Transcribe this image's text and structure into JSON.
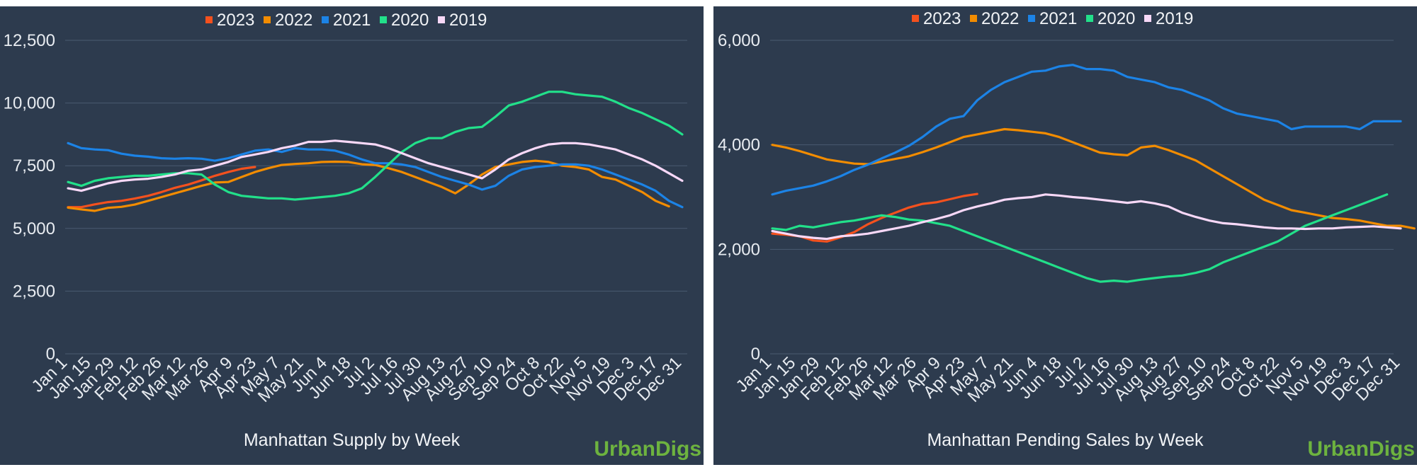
{
  "chart_data": [
    {
      "type": "line",
      "title": "Manhattan Supply by Week",
      "ylim": [
        0,
        12500
      ],
      "yticks": [
        "0",
        "2,500",
        "5,000",
        "7,500",
        "10,000",
        "12,500"
      ],
      "ytick_values": [
        0,
        2500,
        5000,
        7500,
        10000,
        12500
      ],
      "x_labels": [
        "Jan 1",
        "Jan 15",
        "Jan 29",
        "Feb 12",
        "Feb 26",
        "Mar 12",
        "Mar 26",
        "Apr 9",
        "Apr 23",
        "May 7",
        "May 21",
        "Jun 4",
        "Jun 18",
        "Jul 2",
        "Jul 16",
        "Jul 30",
        "Aug 13",
        "Aug 27",
        "Sep 10",
        "Sep 24",
        "Oct 8",
        "Oct 22",
        "Nov 5",
        "Nov 19",
        "Dec 3",
        "Dec 17",
        "Dec 31"
      ],
      "grid": true,
      "legend_position": "top",
      "series": [
        {
          "name": "2023",
          "color": "#f4511e",
          "values": [
            5850,
            5850,
            5960,
            6050,
            6100,
            6190,
            6300,
            6450,
            6620,
            6750,
            6920,
            7100,
            7250,
            7380,
            7450
          ]
        },
        {
          "name": "2022",
          "color": "#f28c00",
          "values": [
            5830,
            5760,
            5700,
            5820,
            5860,
            5950,
            6100,
            6250,
            6400,
            6550,
            6700,
            6830,
            6850,
            7050,
            7250,
            7400,
            7530,
            7570,
            7600,
            7650,
            7660,
            7650,
            7560,
            7530,
            7400,
            7250,
            7050,
            6850,
            6650,
            6400,
            6750,
            7150,
            7450,
            7550,
            7650,
            7700,
            7650,
            7500,
            7450,
            7350,
            7050,
            6950,
            6700,
            6450,
            6100,
            5880
          ]
        },
        {
          "name": "2021",
          "color": "#1c83e6",
          "values": [
            8400,
            8200,
            8150,
            8120,
            7980,
            7900,
            7860,
            7800,
            7780,
            7800,
            7780,
            7700,
            7800,
            7950,
            8100,
            8150,
            8050,
            8200,
            8150,
            8150,
            8100,
            7950,
            7750,
            7600,
            7600,
            7550,
            7450,
            7250,
            7050,
            6900,
            6750,
            6550,
            6700,
            7100,
            7350,
            7450,
            7500,
            7550,
            7550,
            7500,
            7350,
            7150,
            6950,
            6750,
            6500,
            6100,
            5850
          ]
        },
        {
          "name": "2020",
          "color": "#22e08a",
          "values": [
            6850,
            6700,
            6900,
            7000,
            7050,
            7100,
            7100,
            7150,
            7200,
            7200,
            7150,
            6750,
            6450,
            6300,
            6250,
            6200,
            6200,
            6150,
            6200,
            6250,
            6300,
            6400,
            6600,
            7050,
            7550,
            8050,
            8400,
            8600,
            8600,
            8850,
            9000,
            9050,
            9450,
            9900,
            10050,
            10250,
            10450,
            10450,
            10350,
            10300,
            10250,
            10050,
            9800,
            9600,
            9350,
            9100,
            8750
          ]
        },
        {
          "name": "2019",
          "color": "#f7d8f7",
          "values": [
            6600,
            6500,
            6650,
            6800,
            6900,
            6950,
            6980,
            7050,
            7150,
            7300,
            7350,
            7500,
            7650,
            7850,
            7950,
            8050,
            8200,
            8300,
            8450,
            8450,
            8500,
            8450,
            8400,
            8350,
            8200,
            8000,
            7800,
            7600,
            7450,
            7300,
            7150,
            7000,
            7350,
            7750,
            8000,
            8200,
            8350,
            8400,
            8400,
            8350,
            8250,
            8150,
            7950,
            7750,
            7500,
            7200,
            6900
          ]
        }
      ]
    },
    {
      "type": "line",
      "title": "Manhattan Pending Sales by Week",
      "ylim": [
        0,
        6000
      ],
      "yticks": [
        "0",
        "2,000",
        "4,000",
        "6,000"
      ],
      "ytick_values": [
        0,
        2000,
        4000,
        6000
      ],
      "x_labels": [
        "Jan 1",
        "Jan 15",
        "Jan 29",
        "Feb 12",
        "Feb 26",
        "Mar 12",
        "Mar 26",
        "Apr 9",
        "Apr 23",
        "May 7",
        "May 21",
        "Jun 4",
        "Jun 18",
        "Jul 2",
        "Jul 16",
        "Jul 30",
        "Aug 13",
        "Aug 27",
        "Sep 10",
        "Sep 24",
        "Oct 8",
        "Oct 22",
        "Nov 5",
        "Nov 19",
        "Dec 3",
        "Dec 17",
        "Dec 31"
      ],
      "grid": true,
      "legend_position": "top",
      "series": [
        {
          "name": "2023",
          "color": "#f4511e",
          "values": [
            2300,
            2280,
            2250,
            2170,
            2150,
            2230,
            2330,
            2480,
            2600,
            2700,
            2800,
            2870,
            2900,
            2960,
            3020,
            3060
          ]
        },
        {
          "name": "2022",
          "color": "#f28c00",
          "values": [
            4000,
            3950,
            3880,
            3800,
            3720,
            3680,
            3640,
            3630,
            3680,
            3730,
            3780,
            3860,
            3950,
            4050,
            4150,
            4200,
            4250,
            4300,
            4280,
            4250,
            4220,
            4150,
            4050,
            3950,
            3850,
            3820,
            3800,
            3950,
            3980,
            3900,
            3800,
            3700,
            3550,
            3400,
            3250,
            3100,
            2950,
            2850,
            2750,
            2700,
            2650,
            2600,
            2580,
            2550,
            2500,
            2450,
            2450,
            2400
          ]
        },
        {
          "name": "2021",
          "color": "#1c83e6",
          "values": [
            3050,
            3120,
            3170,
            3220,
            3300,
            3400,
            3520,
            3620,
            3740,
            3850,
            3980,
            4150,
            4350,
            4500,
            4550,
            4850,
            5050,
            5200,
            5300,
            5400,
            5420,
            5500,
            5530,
            5450,
            5450,
            5420,
            5300,
            5250,
            5200,
            5100,
            5050,
            4950,
            4850,
            4700,
            4600,
            4550,
            4500,
            4450,
            4300,
            4350,
            4350,
            4350,
            4350,
            4300,
            4450,
            4450,
            4450
          ]
        },
        {
          "name": "2020",
          "color": "#22e08a",
          "values": [
            2400,
            2370,
            2450,
            2420,
            2470,
            2520,
            2550,
            2600,
            2650,
            2620,
            2570,
            2550,
            2500,
            2450,
            2350,
            2250,
            2150,
            2050,
            1950,
            1850,
            1750,
            1650,
            1550,
            1450,
            1380,
            1400,
            1380,
            1420,
            1450,
            1480,
            1500,
            1550,
            1620,
            1750,
            1850,
            1950,
            2050,
            2150,
            2300,
            2450,
            2550,
            2650,
            2750,
            2850,
            2950,
            3050
          ]
        },
        {
          "name": "2019",
          "color": "#f7d8f7",
          "values": [
            2350,
            2300,
            2250,
            2220,
            2200,
            2250,
            2270,
            2300,
            2350,
            2400,
            2450,
            2520,
            2580,
            2650,
            2750,
            2820,
            2880,
            2950,
            2980,
            3000,
            3050,
            3030,
            3000,
            2980,
            2950,
            2920,
            2890,
            2920,
            2880,
            2820,
            2700,
            2620,
            2550,
            2500,
            2480,
            2450,
            2420,
            2400,
            2400,
            2390,
            2400,
            2400,
            2420,
            2430,
            2440,
            2420,
            2400
          ]
        }
      ]
    }
  ],
  "logo_text": "UrbanDigs"
}
